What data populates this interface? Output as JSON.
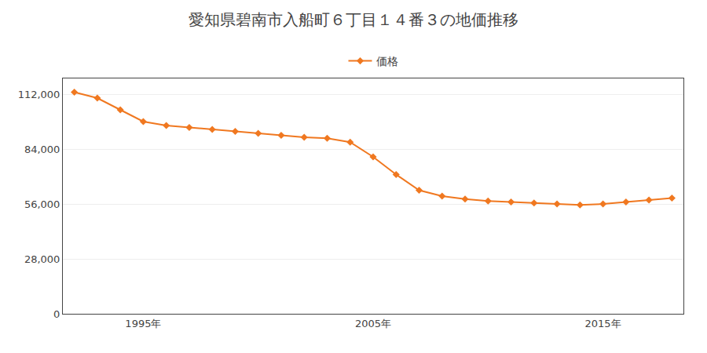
{
  "chart_data": {
    "type": "line",
    "title": "愛知県碧南市入船町６丁目１４番３の地価推移",
    "x": [
      1992,
      1993,
      1994,
      1995,
      1996,
      1997,
      1998,
      1999,
      2000,
      2001,
      2002,
      2003,
      2004,
      2005,
      2006,
      2007,
      2008,
      2009,
      2010,
      2011,
      2012,
      2013,
      2014,
      2015,
      2016,
      2017,
      2018
    ],
    "series": [
      {
        "name": "価格",
        "color": "#f07820",
        "marker": "diamond",
        "values": [
          113000,
          110000,
          104000,
          98000,
          96000,
          95000,
          94000,
          93000,
          92000,
          91000,
          90000,
          89500,
          87500,
          80000,
          71000,
          63000,
          60000,
          58500,
          57500,
          57000,
          56500,
          56000,
          55500,
          56000,
          57000,
          58000,
          59000
        ]
      }
    ],
    "xlim": [
      1991.5,
      2018.5
    ],
    "xticks": [
      {
        "value": 1995,
        "label": "1995年"
      },
      {
        "value": 2005,
        "label": "2005年"
      },
      {
        "value": 2015,
        "label": "2015年"
      }
    ],
    "ylim": [
      0,
      120000
    ],
    "yticks": [
      0,
      {
        "value": 28000,
        "label": "28,000"
      },
      {
        "value": 56000,
        "label": "56,000"
      },
      {
        "value": 84000,
        "label": "84,000"
      },
      {
        "value": 112000,
        "label": "112,000"
      }
    ],
    "grid": true,
    "legend": "top"
  }
}
